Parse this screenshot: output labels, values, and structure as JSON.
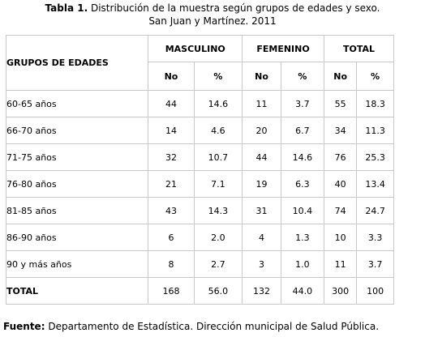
{
  "title": {
    "label": "Tabla 1.",
    "line1": "Distribución de la muestra según grupos de edades y sexo.",
    "line2": "San Juan y Martínez. 2011"
  },
  "table": {
    "group_header": "GRUPOS DE EDADES",
    "col_groups": [
      "MASCULINO",
      "FEMENINO",
      "TOTAL"
    ],
    "sub_headers": [
      "No",
      "%",
      "No",
      "%",
      "No",
      "%"
    ],
    "rows": [
      {
        "label": "60-65 años",
        "values": [
          "44",
          "14.6",
          "11",
          "3.7",
          "55",
          "18.3"
        ]
      },
      {
        "label": "66-70 años",
        "values": [
          "14",
          "4.6",
          "20",
          "6.7",
          "34",
          "11.3"
        ]
      },
      {
        "label": "71-75 años",
        "values": [
          "32",
          "10.7",
          "44",
          "14.6",
          "76",
          "25.3"
        ]
      },
      {
        "label": "76-80 años",
        "values": [
          "21",
          "7.1",
          "19",
          "6.3",
          "40",
          "13.4"
        ]
      },
      {
        "label": "81-85 años",
        "values": [
          "43",
          "14.3",
          "31",
          "10.4",
          "74",
          "24.7"
        ]
      },
      {
        "label": "86-90 años",
        "values": [
          "6",
          "2.0",
          "4",
          "1.3",
          "10",
          "3.3"
        ]
      },
      {
        "label": "90 y más años",
        "values": [
          "8",
          "2.7",
          "3",
          "1.0",
          "11",
          "3.7"
        ]
      }
    ],
    "total": {
      "label": "TOTAL",
      "values": [
        "168",
        "56.0",
        "132",
        "44.0",
        "300",
        "100"
      ]
    }
  },
  "source": {
    "label": "Fuente:",
    "text": "Departamento de Estadística. Dirección municipal de Salud Pública."
  }
}
